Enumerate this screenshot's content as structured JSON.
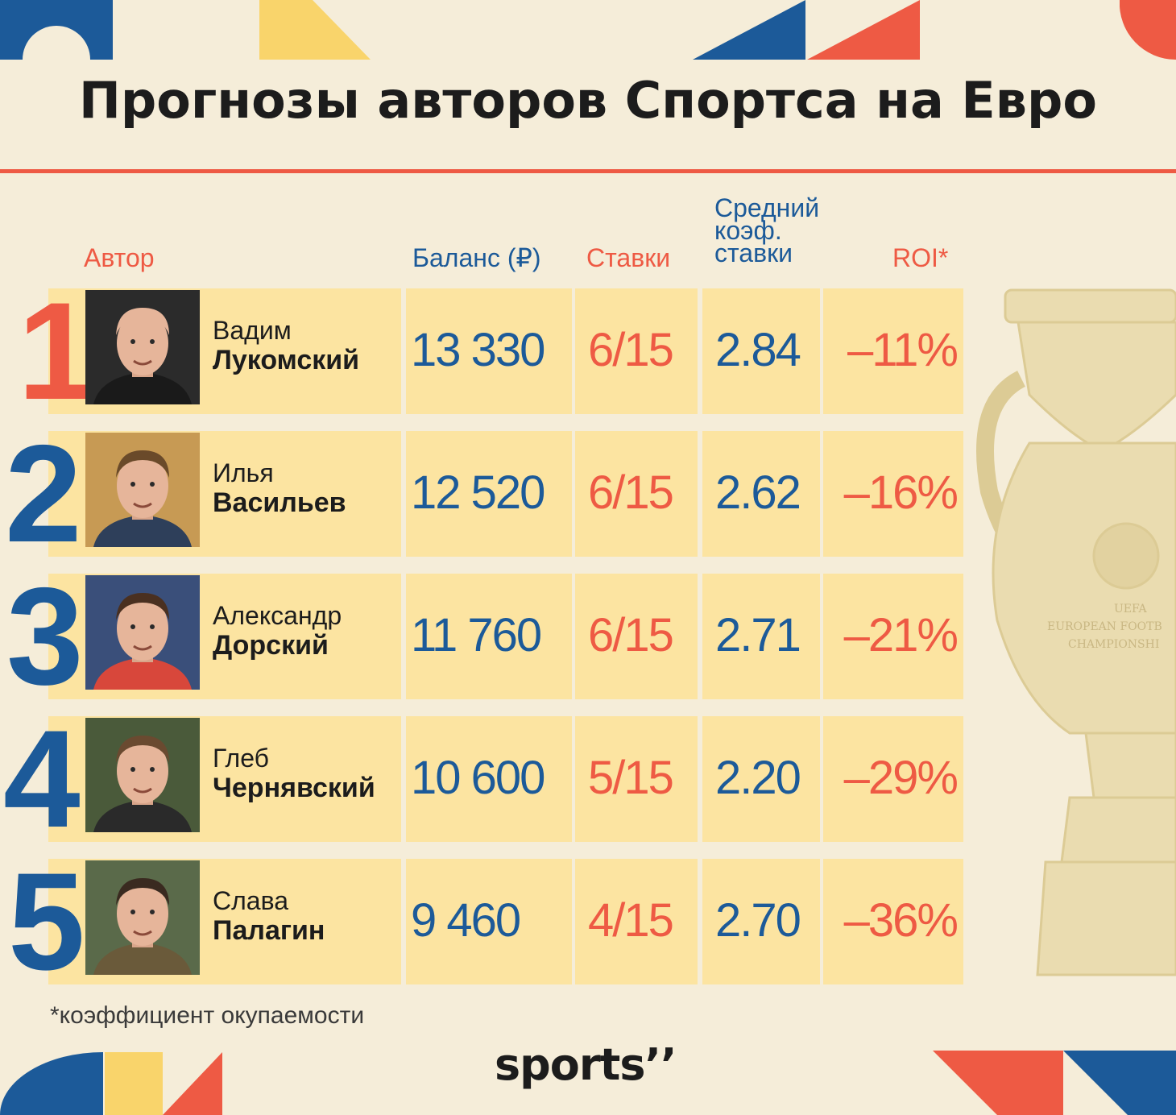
{
  "title": "Прогнозы авторов Спортса на Евро",
  "headers": {
    "author": "Автор",
    "balance": "Баланс (₽)",
    "bets": "Ставки",
    "avg_odds_line1": "Средний",
    "avg_odds_line2": "коэф.",
    "avg_odds_line3": "ставки",
    "roi": "ROI*"
  },
  "rows": [
    {
      "rank": "1",
      "first": "Вадим",
      "last": "Лукомский",
      "balance": "13 330",
      "bets": "6/15",
      "odds": "2.84",
      "roi": "–11%"
    },
    {
      "rank": "2",
      "first": "Илья",
      "last": "Васильев",
      "balance": "12 520",
      "bets": "6/15",
      "odds": "2.62",
      "roi": "–16%"
    },
    {
      "rank": "3",
      "first": "Александр",
      "last": "Дорский",
      "balance": "11 760",
      "bets": "6/15",
      "odds": "2.71",
      "roi": "–21%"
    },
    {
      "rank": "4",
      "first": "Глеб",
      "last": "Чернявский",
      "balance": "10 600",
      "bets": "5/15",
      "odds": "2.20",
      "roi": "–29%"
    },
    {
      "rank": "5",
      "first": "Слава",
      "last": "Палагин",
      "balance": "9 460",
      "bets": "4/15",
      "odds": "2.70",
      "roi": "–36%"
    }
  ],
  "footnote": "*коэффициент окупаемости",
  "logo": "sports’’",
  "colors": {
    "background": "#f5edd9",
    "cell": "#fce4a1",
    "blue": "#1c5a99",
    "red": "#ee5a44",
    "yellow": "#f9d46b",
    "dark": "#1c1c1c"
  }
}
